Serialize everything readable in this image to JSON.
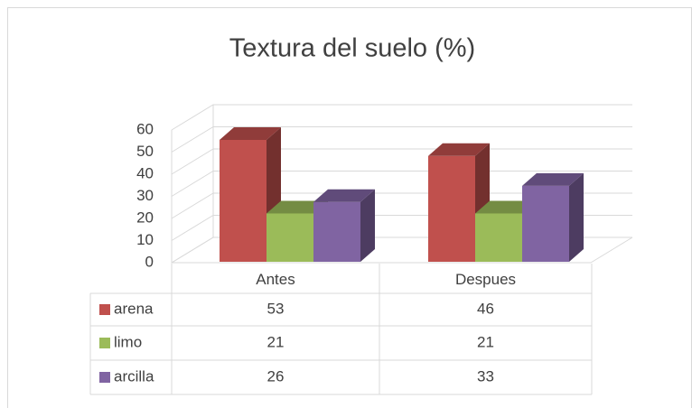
{
  "chart_data": {
    "type": "bar3d",
    "title": "Textura del suelo (%)",
    "categories": [
      "Antes",
      "Despues"
    ],
    "series": [
      {
        "name": "arena",
        "color": "#c0504d",
        "values": [
          53,
          46
        ]
      },
      {
        "name": "limo",
        "color": "#9bbb59",
        "values": [
          21,
          21
        ]
      },
      {
        "name": "arcilla",
        "color": "#8064a2",
        "values": [
          26,
          33
        ]
      }
    ],
    "ylim": [
      0,
      60
    ],
    "yticks": [
      0,
      10,
      20,
      30,
      40,
      50,
      60
    ],
    "grid": true,
    "data_table": true
  }
}
